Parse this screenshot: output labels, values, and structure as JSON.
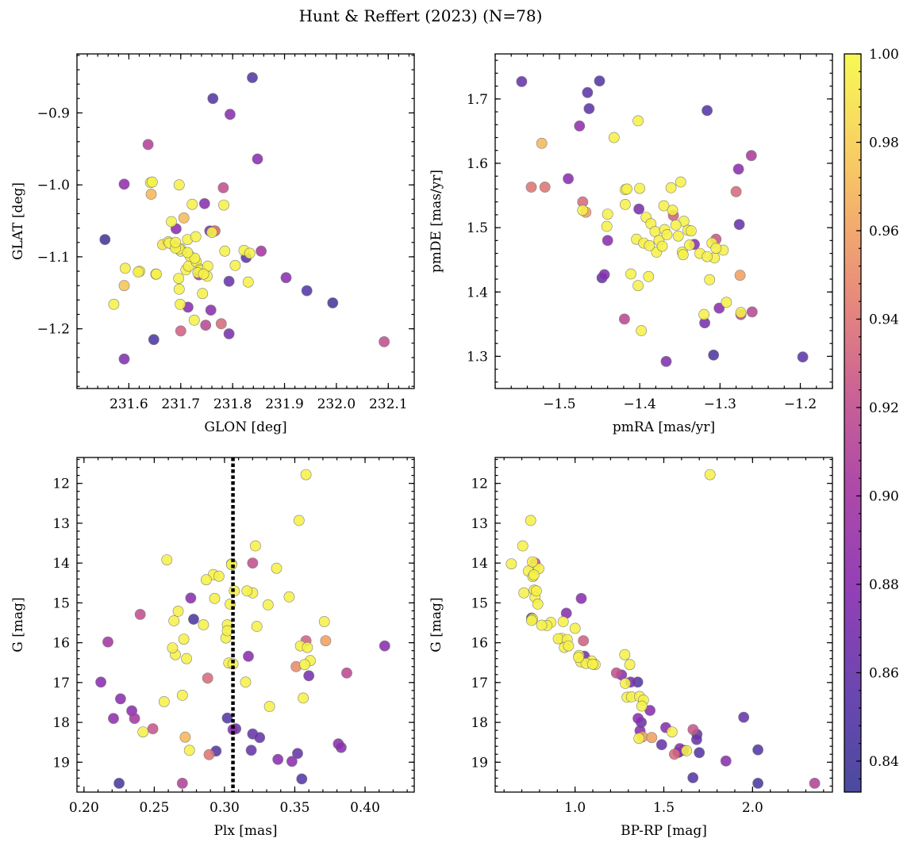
{
  "figure": {
    "title": "Hunt & Reffert (2023) (N=78)"
  },
  "colorbar": {
    "min": 0.833,
    "max": 1.0,
    "ticks": [
      0.84,
      0.86,
      0.88,
      0.9,
      0.92,
      0.94,
      0.96,
      0.98,
      1.0
    ],
    "tick_labels": [
      "0.84",
      "0.86",
      "0.88",
      "0.90",
      "0.92",
      "0.94",
      "0.96",
      "0.98",
      "1.00"
    ],
    "stops": [
      [
        0.0,
        "#3b3a96"
      ],
      [
        0.12,
        "#5a37a8"
      ],
      [
        0.28,
        "#8a2fb0"
      ],
      [
        0.42,
        "#a83aa0"
      ],
      [
        0.55,
        "#c8578a"
      ],
      [
        0.66,
        "#e37d72"
      ],
      [
        0.76,
        "#f1a062"
      ],
      [
        0.86,
        "#f8c856"
      ],
      [
        1.0,
        "#f6f946"
      ]
    ]
  },
  "chart_data": [
    {
      "type": "scatter",
      "name": "sky",
      "xlabel": "GLON [deg]",
      "ylabel": "GLAT [deg]",
      "xlim": [
        231.5,
        232.15
      ],
      "ylim": [
        -1.283,
        -0.818
      ],
      "xticks": [
        231.6,
        231.7,
        231.8,
        231.9,
        232.0,
        232.1
      ],
      "xtick_labels": [
        "231.6",
        "231.7",
        "231.8",
        "231.9",
        "232.0",
        "232.1"
      ],
      "yticks": [
        -1.2,
        -1.1,
        -1.0,
        -0.9
      ],
      "ytick_labels": [
        "−1.2",
        "−1.1",
        "−1.0",
        "−0.9"
      ],
      "x": [
        231.554,
        231.591,
        231.591,
        231.593,
        231.621,
        231.618,
        231.591,
        231.571,
        231.637,
        231.643,
        231.642,
        231.645,
        231.648,
        231.652,
        231.653,
        231.676,
        231.678,
        231.682,
        231.688,
        231.691,
        231.697,
        231.696,
        231.697,
        231.699,
        231.7,
        231.7,
        231.697,
        231.706,
        231.713,
        231.71,
        231.714,
        231.715,
        231.718,
        231.722,
        231.73,
        231.726,
        231.727,
        231.729,
        231.735,
        231.737,
        231.738,
        231.742,
        231.746,
        231.748,
        231.752,
        231.751,
        231.756,
        231.758,
        231.762,
        231.765,
        231.766,
        231.778,
        231.782,
        231.783,
        231.785,
        231.793,
        231.793,
        231.795,
        231.805,
        231.822,
        231.826,
        231.83,
        231.833,
        231.838,
        231.848,
        231.855,
        231.903,
        231.943,
        231.993,
        232.092,
        231.7,
        231.713,
        231.733,
        231.69,
        231.665,
        231.69,
        231.76,
        231.744
      ],
      "y": [
        -1.076,
        -0.999,
        -1.242,
        -1.116,
        -1.12,
        -1.121,
        -1.14,
        -1.166,
        -0.944,
        -1.013,
        -0.997,
        -0.996,
        -1.215,
        -1.124,
        -1.124,
        -1.079,
        -1.081,
        -1.051,
        -1.085,
        -1.061,
        -1.0,
        -1.13,
        -1.145,
        -1.166,
        -1.203,
        -1.092,
        -1.089,
        -1.046,
        -1.076,
        -1.118,
        -1.17,
        -1.113,
        -1.099,
        -1.027,
        -1.107,
        -1.188,
        -1.102,
        -1.072,
        -1.125,
        -1.117,
        -1.119,
        -1.151,
        -1.026,
        -1.195,
        -1.113,
        -1.127,
        -1.064,
        -1.174,
        -0.88,
        -1.064,
        -1.064,
        -1.193,
        -1.004,
        -1.028,
        -1.092,
        -1.207,
        -1.134,
        -0.902,
        -1.112,
        -1.091,
        -1.101,
        -1.135,
        -1.095,
        -0.851,
        -0.964,
        -1.092,
        -1.129,
        -1.147,
        -1.164,
        -1.218,
        -1.089,
        -1.094,
        -1.122,
        -1.088,
        -1.083,
        -1.08,
        -1.066,
        -1.124
      ],
      "c": [
        0.838,
        0.885,
        0.875,
        0.995,
        0.995,
        0.995,
        0.975,
        0.996,
        0.91,
        0.97,
        0.996,
        0.996,
        0.845,
        0.996,
        0.996,
        0.996,
        0.996,
        0.996,
        0.995,
        0.88,
        0.996,
        0.996,
        0.996,
        0.996,
        0.93,
        0.996,
        0.996,
        0.972,
        0.996,
        0.996,
        0.88,
        0.996,
        0.996,
        0.996,
        0.996,
        0.996,
        0.996,
        0.996,
        0.9,
        0.996,
        0.996,
        0.996,
        0.88,
        0.915,
        0.996,
        0.996,
        0.87,
        0.88,
        0.85,
        0.94,
        0.94,
        0.935,
        0.92,
        0.996,
        0.996,
        0.87,
        0.86,
        0.88,
        0.996,
        0.996,
        0.855,
        0.996,
        0.996,
        0.85,
        0.88,
        0.9,
        0.88,
        0.85,
        0.84,
        0.92,
        0.995,
        0.996,
        0.996,
        0.996,
        0.99,
        0.996,
        0.996,
        0.996
      ]
    },
    {
      "type": "scatter",
      "name": "proper_motion",
      "xlabel": "pmRA [mas/yr]",
      "ylabel": "pmDE [mas/yr]",
      "xlim": [
        -1.58,
        -1.16
      ],
      "ylim": [
        1.25,
        1.77
      ],
      "xticks": [
        -1.5,
        -1.4,
        -1.3,
        -1.2
      ],
      "xtick_labels": [
        "−1.5",
        "−1.4",
        "−1.3",
        "−1.2"
      ],
      "yticks": [
        1.3,
        1.4,
        1.5,
        1.6,
        1.7
      ],
      "ytick_labels": [
        "1.3",
        "1.4",
        "1.5",
        "1.6",
        "1.7"
      ],
      "x": [
        -1.547,
        -1.535,
        -1.522,
        -1.518,
        -1.489,
        -1.475,
        -1.471,
        -1.467,
        -1.465,
        -1.463,
        -1.45,
        -1.447,
        -1.444,
        -1.441,
        -1.44,
        -1.432,
        -1.419,
        -1.418,
        -1.418,
        -1.416,
        -1.411,
        -1.404,
        -1.402,
        -1.402,
        -1.401,
        -1.4,
        -1.398,
        -1.395,
        -1.392,
        -1.389,
        -1.386,
        -1.381,
        -1.379,
        -1.376,
        -1.37,
        -1.369,
        -1.367,
        -1.366,
        -1.361,
        -1.359,
        -1.358,
        -1.352,
        -1.349,
        -1.347,
        -1.346,
        -1.345,
        -1.34,
        -1.338,
        -1.336,
        -1.325,
        -1.32,
        -1.319,
        -1.316,
        -1.313,
        -1.31,
        -1.308,
        -1.307,
        -1.305,
        -1.301,
        -1.296,
        -1.292,
        -1.28,
        -1.277,
        -1.276,
        -1.275,
        -1.274,
        -1.261,
        -1.26,
        -1.197,
        -1.471,
        -1.388,
        -1.355,
        -1.44,
        -1.372,
        -1.332,
        -1.316,
        -1.274,
        -1.305
      ],
      "y": [
        1.727,
        1.563,
        1.631,
        1.563,
        1.576,
        1.658,
        1.54,
        1.524,
        1.71,
        1.685,
        1.728,
        1.422,
        1.427,
        1.502,
        1.48,
        1.64,
        1.358,
        1.536,
        1.559,
        1.56,
        1.428,
        1.482,
        1.41,
        1.666,
        1.529,
        1.561,
        1.34,
        1.476,
        1.516,
        1.424,
        1.506,
        1.494,
        1.462,
        1.48,
        1.534,
        1.497,
        1.292,
        1.489,
        1.562,
        1.527,
        1.519,
        1.487,
        1.571,
        1.462,
        1.458,
        1.51,
        1.496,
        1.473,
        1.495,
        1.46,
        1.365,
        1.352,
        1.682,
        1.419,
        1.476,
        1.302,
        1.453,
        1.482,
        1.375,
        1.465,
        1.384,
        1.556,
        1.591,
        1.505,
        1.426,
        1.365,
        1.612,
        1.369,
        1.299,
        1.527,
        1.472,
        1.504,
        1.521,
        1.471,
        1.474,
        1.455,
        1.368,
        1.468
      ],
      "c": [
        0.86,
        0.94,
        0.97,
        0.94,
        0.88,
        0.885,
        0.935,
        0.96,
        0.855,
        0.855,
        0.85,
        0.86,
        0.875,
        0.996,
        0.88,
        0.996,
        0.915,
        0.996,
        0.996,
        0.996,
        0.996,
        0.996,
        0.996,
        0.996,
        0.87,
        0.996,
        0.996,
        0.996,
        0.996,
        0.996,
        0.996,
        0.996,
        0.996,
        0.996,
        0.996,
        0.996,
        0.875,
        0.996,
        0.996,
        0.996,
        0.93,
        0.996,
        0.996,
        0.996,
        0.996,
        0.996,
        0.996,
        0.996,
        0.996,
        0.996,
        0.996,
        0.87,
        0.85,
        0.996,
        0.996,
        0.845,
        0.996,
        0.925,
        0.88,
        0.996,
        0.996,
        0.935,
        0.88,
        0.86,
        0.96,
        0.92,
        0.905,
        0.915,
        0.855,
        0.996,
        0.996,
        0.996,
        0.996,
        0.996,
        0.88,
        0.996,
        0.996,
        0.996
      ]
    },
    {
      "type": "scatter",
      "name": "plx_vs_g",
      "xlabel": "Plx [mas]",
      "ylabel": "G [mag]",
      "xlim": [
        0.195,
        0.435
      ],
      "ylim": [
        19.75,
        11.35
      ],
      "y_inverted": true,
      "vline": 0.306,
      "xticks": [
        0.2,
        0.25,
        0.3,
        0.35,
        0.4
      ],
      "xtick_labels": [
        "0.20",
        "0.25",
        "0.30",
        "0.35",
        "0.40"
      ],
      "yticks": [
        12,
        13,
        14,
        15,
        16,
        17,
        18,
        19
      ],
      "ytick_labels": [
        "12",
        "13",
        "14",
        "15",
        "16",
        "17",
        "18",
        "19"
      ],
      "x": [
        0.358,
        0.353,
        0.322,
        0.259,
        0.32,
        0.337,
        0.305,
        0.292,
        0.296,
        0.307,
        0.32,
        0.346,
        0.276,
        0.293,
        0.331,
        0.371,
        0.264,
        0.304,
        0.302,
        0.323,
        0.24,
        0.358,
        0.372,
        0.278,
        0.354,
        0.271,
        0.217,
        0.359,
        0.301,
        0.265,
        0.273,
        0.263,
        0.361,
        0.357,
        0.303,
        0.306,
        0.317,
        0.387,
        0.414,
        0.36,
        0.288,
        0.212,
        0.315,
        0.27,
        0.226,
        0.356,
        0.332,
        0.257,
        0.234,
        0.221,
        0.302,
        0.306,
        0.242,
        0.249,
        0.236,
        0.32,
        0.308,
        0.325,
        0.272,
        0.381,
        0.383,
        0.319,
        0.294,
        0.289,
        0.352,
        0.338,
        0.348,
        0.27,
        0.225,
        0.355,
        0.305,
        0.351,
        0.275,
        0.302,
        0.316,
        0.267,
        0.285,
        0.287
      ],
      "y": [
        11.78,
        12.93,
        13.57,
        13.92,
        14.0,
        14.13,
        14.02,
        14.29,
        14.33,
        14.7,
        14.75,
        14.85,
        14.88,
        14.89,
        15.05,
        15.47,
        15.45,
        15.03,
        15.55,
        15.59,
        15.29,
        15.95,
        15.95,
        15.41,
        16.08,
        15.91,
        15.98,
        16.12,
        15.88,
        16.3,
        16.4,
        16.13,
        16.45,
        16.55,
        16.51,
        16.53,
        16.34,
        16.76,
        16.08,
        16.83,
        16.89,
        16.99,
        16.99,
        17.32,
        17.41,
        17.39,
        17.6,
        17.48,
        17.71,
        17.9,
        17.89,
        18.18,
        18.24,
        18.16,
        17.9,
        18.29,
        18.16,
        18.38,
        18.37,
        18.54,
        18.63,
        18.7,
        18.72,
        18.81,
        18.78,
        18.93,
        18.98,
        19.53,
        19.53,
        19.42,
        14.04,
        16.6,
        18.7,
        15.7,
        14.7,
        15.21,
        15.55,
        14.42
      ],
      "c": [
        0.996,
        0.996,
        0.996,
        0.996,
        0.92,
        0.996,
        0.996,
        0.996,
        0.996,
        0.996,
        0.996,
        0.996,
        0.88,
        0.996,
        0.996,
        0.996,
        0.996,
        0.996,
        0.996,
        0.996,
        0.92,
        0.93,
        0.96,
        0.845,
        0.996,
        0.996,
        0.9,
        0.996,
        0.996,
        0.996,
        0.996,
        0.996,
        0.996,
        0.996,
        0.996,
        0.996,
        0.88,
        0.915,
        0.88,
        0.87,
        0.935,
        0.88,
        0.996,
        0.996,
        0.88,
        0.996,
        0.996,
        0.996,
        0.88,
        0.885,
        0.85,
        0.88,
        0.996,
        0.925,
        0.9,
        0.86,
        0.86,
        0.86,
        0.97,
        0.88,
        0.88,
        0.86,
        0.85,
        0.94,
        0.86,
        0.88,
        0.88,
        0.91,
        0.845,
        0.85,
        0.996,
        0.95,
        0.996,
        0.996,
        0.996,
        0.996,
        0.996,
        0.996
      ]
    },
    {
      "type": "scatter",
      "name": "cmd",
      "xlabel": "BP-RP [mag]",
      "ylabel": "G [mag]",
      "xlim": [
        0.55,
        2.45
      ],
      "ylim": [
        19.75,
        11.35
      ],
      "y_inverted": true,
      "xticks": [
        1.0,
        1.5,
        2.0
      ],
      "xtick_labels": [
        "1.0",
        "1.5",
        "2.0"
      ],
      "yticks": [
        12,
        13,
        14,
        15,
        16,
        17,
        18,
        19
      ],
      "ytick_labels": [
        "12",
        "13",
        "14",
        "15",
        "16",
        "17",
        "18",
        "19"
      ],
      "x": [
        1.76,
        0.75,
        0.705,
        0.641,
        0.775,
        0.774,
        0.737,
        0.762,
        0.796,
        0.712,
        0.77,
        0.775,
        0.79,
        0.951,
        1.035,
        0.864,
        0.933,
        0.755,
        0.842,
        0.76,
        1.0,
        0.924,
        1.047,
        0.812,
        0.906,
        0.956,
        0.94,
        0.963,
        1.022,
        1.053,
        1.093,
        1.113,
        1.033,
        1.062,
        1.28,
        1.308,
        1.313,
        1.233,
        1.262,
        1.283,
        1.353,
        1.293,
        1.318,
        1.363,
        1.385,
        1.376,
        1.355,
        1.422,
        1.373,
        1.366,
        1.36,
        1.38,
        1.432,
        1.488,
        1.511,
        1.546,
        1.56,
        1.59,
        1.628,
        1.612,
        1.665,
        1.687,
        1.7,
        1.584,
        1.58,
        1.685,
        1.664,
        1.85,
        1.95,
        2.03,
        2.03,
        2.35,
        0.76,
        1.02,
        1.099,
        0.782,
        0.768,
        0.755
      ],
      "y": [
        11.78,
        12.93,
        13.57,
        14.02,
        14.0,
        14.13,
        14.2,
        14.34,
        14.14,
        14.75,
        14.68,
        14.86,
        15.03,
        15.26,
        14.89,
        15.49,
        15.47,
        15.38,
        15.57,
        15.4,
        15.64,
        15.89,
        15.95,
        15.56,
        15.9,
        15.92,
        16.12,
        16.08,
        16.32,
        16.34,
        16.46,
        16.55,
        16.48,
        16.52,
        16.3,
        16.55,
        16.99,
        16.76,
        16.81,
        17.02,
        16.99,
        17.37,
        17.36,
        17.35,
        17.44,
        17.59,
        17.9,
        17.7,
        18.0,
        18.21,
        18.4,
        18.36,
        18.38,
        18.56,
        18.13,
        18.24,
        18.8,
        18.66,
        18.71,
        18.7,
        18.18,
        18.3,
        18.76,
        18.75,
        18.75,
        18.43,
        19.39,
        18.97,
        17.87,
        18.69,
        19.53,
        19.53,
        13.97,
        16.37,
        16.54,
        14.7,
        14.3,
        15.44
      ],
      "c": [
        0.996,
        0.996,
        0.996,
        0.996,
        0.92,
        0.996,
        0.996,
        0.996,
        0.996,
        0.996,
        0.996,
        0.996,
        0.996,
        0.88,
        0.88,
        0.996,
        0.996,
        0.845,
        0.996,
        0.996,
        0.996,
        0.996,
        0.93,
        0.996,
        0.996,
        0.996,
        0.996,
        0.996,
        0.996,
        0.87,
        0.996,
        0.996,
        0.996,
        0.996,
        0.996,
        0.996,
        0.87,
        0.92,
        0.88,
        0.996,
        0.85,
        0.996,
        0.996,
        0.996,
        0.996,
        0.996,
        0.88,
        0.88,
        0.86,
        0.88,
        0.996,
        0.96,
        0.96,
        0.86,
        0.88,
        0.996,
        0.935,
        0.88,
        0.996,
        0.87,
        0.925,
        0.86,
        0.85,
        0.88,
        0.88,
        0.86,
        0.85,
        0.88,
        0.86,
        0.85,
        0.845,
        0.91,
        0.996,
        0.996,
        0.996,
        0.996,
        0.996,
        0.996
      ]
    }
  ]
}
